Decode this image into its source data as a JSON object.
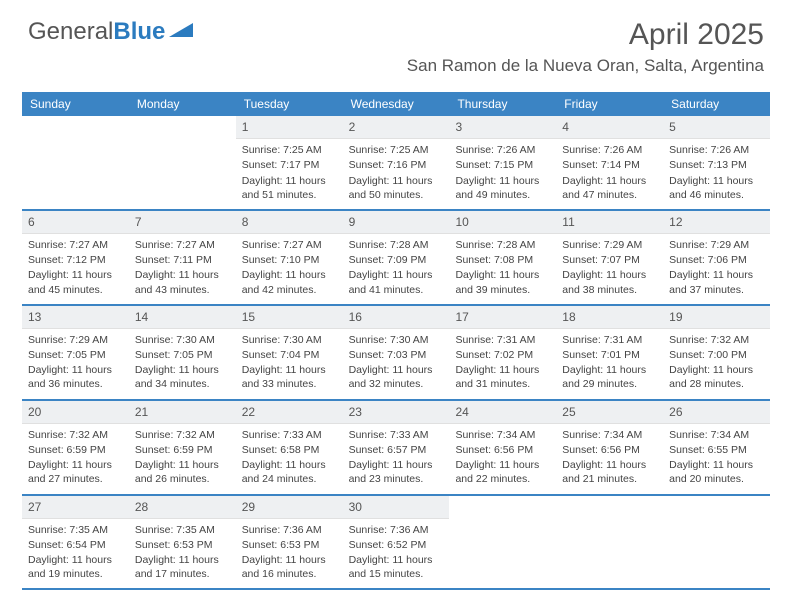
{
  "logo": {
    "text1": "General",
    "text2": "Blue"
  },
  "title": "April 2025",
  "location": "San Ramon de la Nueva Oran, Salta, Argentina",
  "colors": {
    "header_bar": "#3b84c4",
    "day_num_bg": "#eef0f2",
    "text": "#555555",
    "logo_blue": "#2b7bbf"
  },
  "weekdays": [
    "Sunday",
    "Monday",
    "Tuesday",
    "Wednesday",
    "Thursday",
    "Friday",
    "Saturday"
  ],
  "weeks": [
    [
      null,
      null,
      {
        "n": "1",
        "sr": "7:25 AM",
        "ss": "7:17 PM",
        "dl": "11 hours and 51 minutes."
      },
      {
        "n": "2",
        "sr": "7:25 AM",
        "ss": "7:16 PM",
        "dl": "11 hours and 50 minutes."
      },
      {
        "n": "3",
        "sr": "7:26 AM",
        "ss": "7:15 PM",
        "dl": "11 hours and 49 minutes."
      },
      {
        "n": "4",
        "sr": "7:26 AM",
        "ss": "7:14 PM",
        "dl": "11 hours and 47 minutes."
      },
      {
        "n": "5",
        "sr": "7:26 AM",
        "ss": "7:13 PM",
        "dl": "11 hours and 46 minutes."
      }
    ],
    [
      {
        "n": "6",
        "sr": "7:27 AM",
        "ss": "7:12 PM",
        "dl": "11 hours and 45 minutes."
      },
      {
        "n": "7",
        "sr": "7:27 AM",
        "ss": "7:11 PM",
        "dl": "11 hours and 43 minutes."
      },
      {
        "n": "8",
        "sr": "7:27 AM",
        "ss": "7:10 PM",
        "dl": "11 hours and 42 minutes."
      },
      {
        "n": "9",
        "sr": "7:28 AM",
        "ss": "7:09 PM",
        "dl": "11 hours and 41 minutes."
      },
      {
        "n": "10",
        "sr": "7:28 AM",
        "ss": "7:08 PM",
        "dl": "11 hours and 39 minutes."
      },
      {
        "n": "11",
        "sr": "7:29 AM",
        "ss": "7:07 PM",
        "dl": "11 hours and 38 minutes."
      },
      {
        "n": "12",
        "sr": "7:29 AM",
        "ss": "7:06 PM",
        "dl": "11 hours and 37 minutes."
      }
    ],
    [
      {
        "n": "13",
        "sr": "7:29 AM",
        "ss": "7:05 PM",
        "dl": "11 hours and 36 minutes."
      },
      {
        "n": "14",
        "sr": "7:30 AM",
        "ss": "7:05 PM",
        "dl": "11 hours and 34 minutes."
      },
      {
        "n": "15",
        "sr": "7:30 AM",
        "ss": "7:04 PM",
        "dl": "11 hours and 33 minutes."
      },
      {
        "n": "16",
        "sr": "7:30 AM",
        "ss": "7:03 PM",
        "dl": "11 hours and 32 minutes."
      },
      {
        "n": "17",
        "sr": "7:31 AM",
        "ss": "7:02 PM",
        "dl": "11 hours and 31 minutes."
      },
      {
        "n": "18",
        "sr": "7:31 AM",
        "ss": "7:01 PM",
        "dl": "11 hours and 29 minutes."
      },
      {
        "n": "19",
        "sr": "7:32 AM",
        "ss": "7:00 PM",
        "dl": "11 hours and 28 minutes."
      }
    ],
    [
      {
        "n": "20",
        "sr": "7:32 AM",
        "ss": "6:59 PM",
        "dl": "11 hours and 27 minutes."
      },
      {
        "n": "21",
        "sr": "7:32 AM",
        "ss": "6:59 PM",
        "dl": "11 hours and 26 minutes."
      },
      {
        "n": "22",
        "sr": "7:33 AM",
        "ss": "6:58 PM",
        "dl": "11 hours and 24 minutes."
      },
      {
        "n": "23",
        "sr": "7:33 AM",
        "ss": "6:57 PM",
        "dl": "11 hours and 23 minutes."
      },
      {
        "n": "24",
        "sr": "7:34 AM",
        "ss": "6:56 PM",
        "dl": "11 hours and 22 minutes."
      },
      {
        "n": "25",
        "sr": "7:34 AM",
        "ss": "6:56 PM",
        "dl": "11 hours and 21 minutes."
      },
      {
        "n": "26",
        "sr": "7:34 AM",
        "ss": "6:55 PM",
        "dl": "11 hours and 20 minutes."
      }
    ],
    [
      {
        "n": "27",
        "sr": "7:35 AM",
        "ss": "6:54 PM",
        "dl": "11 hours and 19 minutes."
      },
      {
        "n": "28",
        "sr": "7:35 AM",
        "ss": "6:53 PM",
        "dl": "11 hours and 17 minutes."
      },
      {
        "n": "29",
        "sr": "7:36 AM",
        "ss": "6:53 PM",
        "dl": "11 hours and 16 minutes."
      },
      {
        "n": "30",
        "sr": "7:36 AM",
        "ss": "6:52 PM",
        "dl": "11 hours and 15 minutes."
      },
      null,
      null,
      null
    ]
  ],
  "labels": {
    "sunrise": "Sunrise: ",
    "sunset": "Sunset: ",
    "daylight": "Daylight: "
  }
}
